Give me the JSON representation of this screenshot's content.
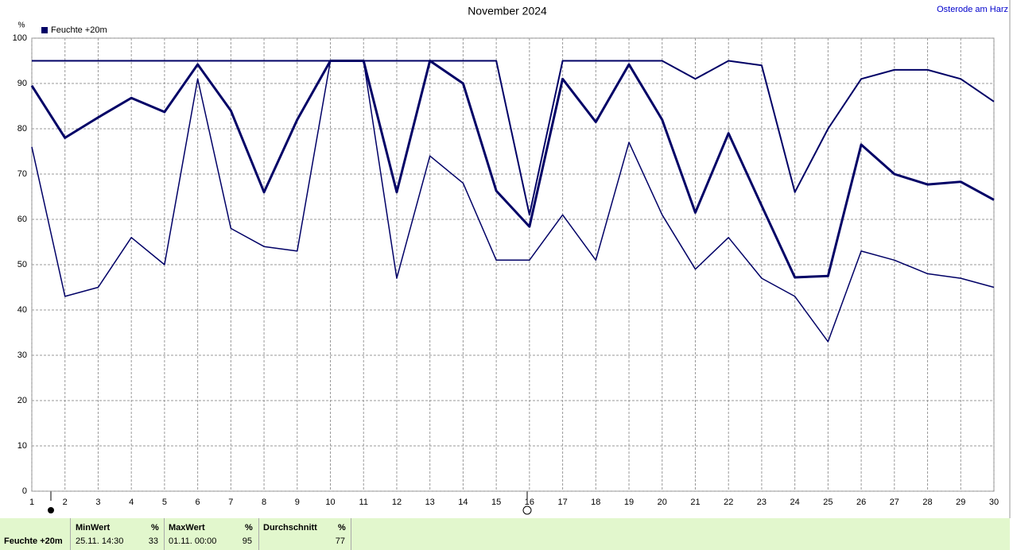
{
  "chart_data": {
    "type": "line",
    "title": "November 2024",
    "annotation": "Osterode am Harz",
    "ylabel": "%",
    "x": [
      1,
      2,
      3,
      4,
      5,
      6,
      7,
      8,
      9,
      10,
      11,
      12,
      13,
      14,
      15,
      16,
      17,
      18,
      19,
      20,
      21,
      22,
      23,
      24,
      25,
      26,
      27,
      28,
      29,
      30
    ],
    "xlim": [
      1,
      30
    ],
    "xticks": [
      1,
      2,
      3,
      4,
      5,
      6,
      7,
      8,
      9,
      10,
      11,
      12,
      13,
      14,
      15,
      16,
      17,
      18,
      19,
      20,
      21,
      22,
      23,
      24,
      25,
      26,
      27,
      28,
      29,
      30
    ],
    "ylim": [
      0,
      100
    ],
    "yticks": [
      0,
      10,
      20,
      30,
      40,
      50,
      60,
      70,
      80,
      90,
      100
    ],
    "grid": true,
    "series": [
      {
        "color": "#000066",
        "values": [
          95,
          95,
          95,
          95,
          95,
          95,
          95,
          95,
          95,
          95,
          95,
          95,
          95,
          95,
          95,
          61,
          95,
          95,
          95,
          95,
          91,
          95,
          94,
          66,
          80,
          91,
          93,
          93,
          91,
          86
        ]
      },
      {
        "name": "Feuchte +20m",
        "color": "#000066",
        "values": [
          89.5,
          78,
          82.5,
          86.8,
          83.7,
          94.2,
          84,
          66,
          82,
          95,
          95,
          66,
          95,
          90,
          66.3,
          58.4,
          91,
          81.5,
          94.2,
          82,
          61.5,
          79,
          63,
          47.2,
          47.5,
          76.5,
          70,
          67.7,
          68.3,
          64.3
        ]
      },
      {
        "color": "#000066",
        "values": [
          76,
          43,
          45,
          56,
          50,
          91,
          58,
          54,
          53,
          95,
          95,
          47,
          74,
          68,
          51,
          51,
          61,
          51,
          77,
          61,
          49,
          56,
          47,
          43,
          33,
          53,
          51,
          48,
          47,
          45
        ]
      }
    ]
  },
  "stats": {
    "row_label": "Feuchte +20m",
    "columns": [
      {
        "header": "MinWert",
        "unit": "%",
        "time": "25.11.  14:30",
        "value": 33
      },
      {
        "header": "MaxWert",
        "unit": "%",
        "time": "01.11.  00:00",
        "value": 95
      },
      {
        "header": "Durchschnitt",
        "unit": "%",
        "value": 77
      }
    ]
  }
}
